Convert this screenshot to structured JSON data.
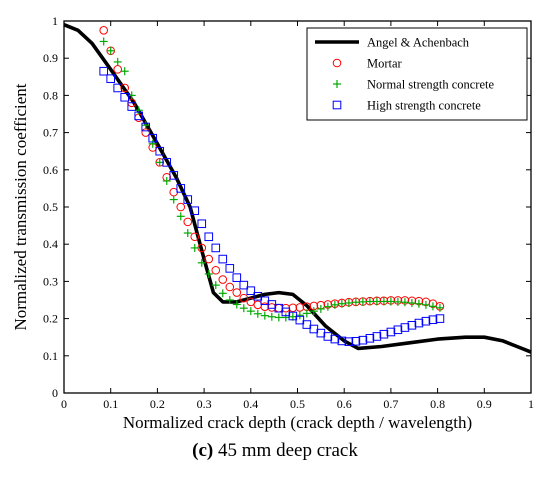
{
  "chart_data": {
    "type": "scatter",
    "xlabel": "Normalized crack depth (crack depth / wavelength)",
    "ylabel": "Normalized transmission coefficient",
    "xlim": [
      0,
      1
    ],
    "ylim": [
      0,
      1
    ],
    "xticks": [
      "0",
      "0.1",
      "0.2",
      "0.3",
      "0.4",
      "0.5",
      "0.6",
      "0.7",
      "0.8",
      "0.9",
      "1"
    ],
    "yticks": [
      "0",
      "0.1",
      "0.2",
      "0.3",
      "0.4",
      "0.5",
      "0.6",
      "0.7",
      "0.8",
      "0.9",
      "1"
    ],
    "grid": false,
    "legend_position": "top-right",
    "series": [
      {
        "name": "Angel & Achenbach",
        "style": "line",
        "color": "#000000",
        "points": [
          [
            0,
            0.99
          ],
          [
            0.03,
            0.975
          ],
          [
            0.06,
            0.94
          ],
          [
            0.1,
            0.87
          ],
          [
            0.15,
            0.78
          ],
          [
            0.2,
            0.67
          ],
          [
            0.24,
            0.58
          ],
          [
            0.27,
            0.5
          ],
          [
            0.3,
            0.36
          ],
          [
            0.32,
            0.27
          ],
          [
            0.34,
            0.245
          ],
          [
            0.37,
            0.245
          ],
          [
            0.4,
            0.255
          ],
          [
            0.43,
            0.265
          ],
          [
            0.46,
            0.27
          ],
          [
            0.49,
            0.265
          ],
          [
            0.52,
            0.235
          ],
          [
            0.56,
            0.18
          ],
          [
            0.6,
            0.14
          ],
          [
            0.63,
            0.12
          ],
          [
            0.68,
            0.125
          ],
          [
            0.74,
            0.135
          ],
          [
            0.8,
            0.145
          ],
          [
            0.86,
            0.15
          ],
          [
            0.9,
            0.15
          ],
          [
            0.94,
            0.14
          ],
          [
            0.97,
            0.125
          ],
          [
            1,
            0.11
          ]
        ]
      },
      {
        "name": "Mortar",
        "style": "circle",
        "color": "#ff0000",
        "points": [
          [
            0.085,
            0.975
          ],
          [
            0.1,
            0.92
          ],
          [
            0.115,
            0.87
          ],
          [
            0.13,
            0.82
          ],
          [
            0.145,
            0.78
          ],
          [
            0.16,
            0.74
          ],
          [
            0.175,
            0.7
          ],
          [
            0.19,
            0.66
          ],
          [
            0.205,
            0.62
          ],
          [
            0.22,
            0.58
          ],
          [
            0.235,
            0.54
          ],
          [
            0.25,
            0.5
          ],
          [
            0.265,
            0.46
          ],
          [
            0.28,
            0.42
          ],
          [
            0.295,
            0.39
          ],
          [
            0.31,
            0.36
          ],
          [
            0.325,
            0.33
          ],
          [
            0.34,
            0.305
          ],
          [
            0.355,
            0.285
          ],
          [
            0.37,
            0.27
          ],
          [
            0.385,
            0.255
          ],
          [
            0.4,
            0.245
          ],
          [
            0.415,
            0.237
          ],
          [
            0.43,
            0.232
          ],
          [
            0.445,
            0.23
          ],
          [
            0.46,
            0.228
          ],
          [
            0.475,
            0.228
          ],
          [
            0.49,
            0.229
          ],
          [
            0.505,
            0.23
          ],
          [
            0.52,
            0.232
          ],
          [
            0.535,
            0.234
          ],
          [
            0.55,
            0.236
          ],
          [
            0.565,
            0.238
          ],
          [
            0.58,
            0.24
          ],
          [
            0.595,
            0.242
          ],
          [
            0.61,
            0.244
          ],
          [
            0.625,
            0.245
          ],
          [
            0.64,
            0.246
          ],
          [
            0.655,
            0.247
          ],
          [
            0.67,
            0.248
          ],
          [
            0.685,
            0.248
          ],
          [
            0.7,
            0.249
          ],
          [
            0.715,
            0.249
          ],
          [
            0.73,
            0.249
          ],
          [
            0.745,
            0.248
          ],
          [
            0.76,
            0.247
          ],
          [
            0.775,
            0.245
          ],
          [
            0.79,
            0.24
          ],
          [
            0.805,
            0.233
          ]
        ]
      },
      {
        "name": "Normal strength concrete",
        "style": "plus",
        "color": "#00aa00",
        "points": [
          [
            0.085,
            0.945
          ],
          [
            0.1,
            0.92
          ],
          [
            0.115,
            0.89
          ],
          [
            0.13,
            0.865
          ],
          [
            0.145,
            0.8
          ],
          [
            0.16,
            0.76
          ],
          [
            0.175,
            0.72
          ],
          [
            0.19,
            0.67
          ],
          [
            0.205,
            0.62
          ],
          [
            0.22,
            0.57
          ],
          [
            0.235,
            0.52
          ],
          [
            0.25,
            0.475
          ],
          [
            0.265,
            0.43
          ],
          [
            0.28,
            0.39
          ],
          [
            0.295,
            0.35
          ],
          [
            0.31,
            0.32
          ],
          [
            0.325,
            0.29
          ],
          [
            0.34,
            0.268
          ],
          [
            0.355,
            0.25
          ],
          [
            0.37,
            0.238
          ],
          [
            0.385,
            0.228
          ],
          [
            0.4,
            0.22
          ],
          [
            0.415,
            0.213
          ],
          [
            0.43,
            0.208
          ],
          [
            0.445,
            0.205
          ],
          [
            0.46,
            0.203
          ],
          [
            0.475,
            0.203
          ],
          [
            0.49,
            0.205
          ],
          [
            0.505,
            0.209
          ],
          [
            0.52,
            0.214
          ],
          [
            0.535,
            0.22
          ],
          [
            0.55,
            0.226
          ],
          [
            0.565,
            0.232
          ],
          [
            0.58,
            0.237
          ],
          [
            0.595,
            0.24
          ],
          [
            0.61,
            0.242
          ],
          [
            0.625,
            0.244
          ],
          [
            0.64,
            0.245
          ],
          [
            0.655,
            0.246
          ],
          [
            0.67,
            0.246
          ],
          [
            0.685,
            0.246
          ],
          [
            0.7,
            0.246
          ],
          [
            0.715,
            0.245
          ],
          [
            0.73,
            0.244
          ],
          [
            0.745,
            0.242
          ],
          [
            0.76,
            0.24
          ],
          [
            0.775,
            0.237
          ],
          [
            0.79,
            0.233
          ],
          [
            0.805,
            0.229
          ]
        ]
      },
      {
        "name": "High strength concrete",
        "style": "square",
        "color": "#0000ff",
        "points": [
          [
            0.085,
            0.865
          ],
          [
            0.1,
            0.845
          ],
          [
            0.115,
            0.82
          ],
          [
            0.13,
            0.795
          ],
          [
            0.145,
            0.77
          ],
          [
            0.16,
            0.745
          ],
          [
            0.175,
            0.715
          ],
          [
            0.19,
            0.685
          ],
          [
            0.205,
            0.65
          ],
          [
            0.22,
            0.62
          ],
          [
            0.235,
            0.585
          ],
          [
            0.25,
            0.55
          ],
          [
            0.265,
            0.52
          ],
          [
            0.28,
            0.49
          ],
          [
            0.295,
            0.455
          ],
          [
            0.31,
            0.42
          ],
          [
            0.325,
            0.39
          ],
          [
            0.34,
            0.36
          ],
          [
            0.355,
            0.335
          ],
          [
            0.37,
            0.31
          ],
          [
            0.385,
            0.29
          ],
          [
            0.4,
            0.275
          ],
          [
            0.415,
            0.26
          ],
          [
            0.43,
            0.248
          ],
          [
            0.445,
            0.238
          ],
          [
            0.46,
            0.228
          ],
          [
            0.475,
            0.218
          ],
          [
            0.49,
            0.207
          ],
          [
            0.505,
            0.196
          ],
          [
            0.52,
            0.184
          ],
          [
            0.535,
            0.172
          ],
          [
            0.55,
            0.161
          ],
          [
            0.565,
            0.152
          ],
          [
            0.58,
            0.145
          ],
          [
            0.595,
            0.14
          ],
          [
            0.61,
            0.138
          ],
          [
            0.625,
            0.139
          ],
          [
            0.64,
            0.142
          ],
          [
            0.655,
            0.147
          ],
          [
            0.67,
            0.152
          ],
          [
            0.685,
            0.158
          ],
          [
            0.7,
            0.164
          ],
          [
            0.715,
            0.17
          ],
          [
            0.73,
            0.176
          ],
          [
            0.745,
            0.182
          ],
          [
            0.76,
            0.188
          ],
          [
            0.775,
            0.193
          ],
          [
            0.79,
            0.197
          ],
          [
            0.805,
            0.2
          ]
        ]
      }
    ]
  },
  "caption": {
    "label": "(c)",
    "text": " 45 mm deep crack"
  }
}
